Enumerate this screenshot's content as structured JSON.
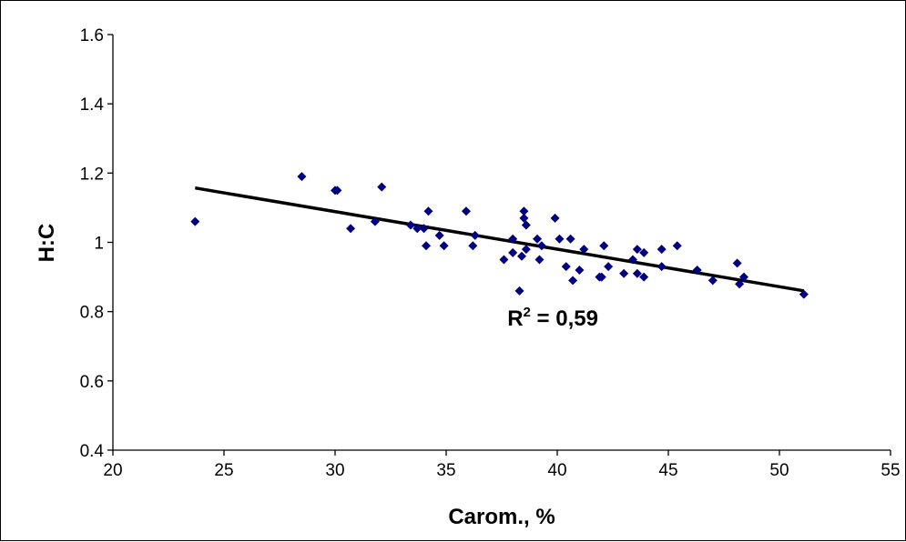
{
  "chart_data": {
    "type": "scatter",
    "title": "",
    "xlabel": "Carom., %",
    "ylabel": "H:C",
    "xlim": [
      20,
      55
    ],
    "ylim": [
      0.4,
      1.6
    ],
    "x_ticks": [
      "20",
      "25",
      "30",
      "35",
      "40",
      "45",
      "50",
      "55"
    ],
    "y_ticks": [
      "0.4",
      "0.6",
      "0.8",
      "1",
      "1.2",
      "1.4",
      "1.6"
    ],
    "grid": false,
    "legend": "none",
    "marker_color": "#000080",
    "trendline_color": "#000000",
    "series": [
      {
        "marker": "diamond",
        "points": [
          [
            23.7,
            1.06
          ],
          [
            28.5,
            1.19
          ],
          [
            30.0,
            1.15
          ],
          [
            30.1,
            1.15
          ],
          [
            30.7,
            1.04
          ],
          [
            31.8,
            1.06
          ],
          [
            32.1,
            1.16
          ],
          [
            33.4,
            1.05
          ],
          [
            33.7,
            1.04
          ],
          [
            34.0,
            1.04
          ],
          [
            34.1,
            0.99
          ],
          [
            34.2,
            1.09
          ],
          [
            34.7,
            1.02
          ],
          [
            34.9,
            0.99
          ],
          [
            35.9,
            1.09
          ],
          [
            36.2,
            0.99
          ],
          [
            36.3,
            1.02
          ],
          [
            37.6,
            0.95
          ],
          [
            38.0,
            1.01
          ],
          [
            38.0,
            0.97
          ],
          [
            38.3,
            0.86
          ],
          [
            38.4,
            0.96
          ],
          [
            38.5,
            1.09
          ],
          [
            38.5,
            1.07
          ],
          [
            38.6,
            1.05
          ],
          [
            38.6,
            0.98
          ],
          [
            39.1,
            1.01
          ],
          [
            39.2,
            0.95
          ],
          [
            39.3,
            0.99
          ],
          [
            39.9,
            1.07
          ],
          [
            40.1,
            1.01
          ],
          [
            40.4,
            0.93
          ],
          [
            40.6,
            1.01
          ],
          [
            40.7,
            0.89
          ],
          [
            41.0,
            0.92
          ],
          [
            41.2,
            0.98
          ],
          [
            41.9,
            0.9
          ],
          [
            42.0,
            0.9
          ],
          [
            42.1,
            0.99
          ],
          [
            42.3,
            0.93
          ],
          [
            43.0,
            0.91
          ],
          [
            43.4,
            0.95
          ],
          [
            43.6,
            0.98
          ],
          [
            43.6,
            0.91
          ],
          [
            43.9,
            0.97
          ],
          [
            43.9,
            0.9
          ],
          [
            44.7,
            0.98
          ],
          [
            44.7,
            0.93
          ],
          [
            45.4,
            0.99
          ],
          [
            46.3,
            0.92
          ],
          [
            47.0,
            0.89
          ],
          [
            48.1,
            0.94
          ],
          [
            48.2,
            0.88
          ],
          [
            48.4,
            0.9
          ],
          [
            51.1,
            0.85
          ]
        ]
      }
    ],
    "trendline": {
      "x": [
        23.7,
        51.1
      ],
      "y": [
        1.157,
        0.86
      ]
    },
    "annotation": {
      "text": "R",
      "sup": "2",
      "suffix": " = 0,59",
      "x": 38.0,
      "y": 0.76
    }
  }
}
